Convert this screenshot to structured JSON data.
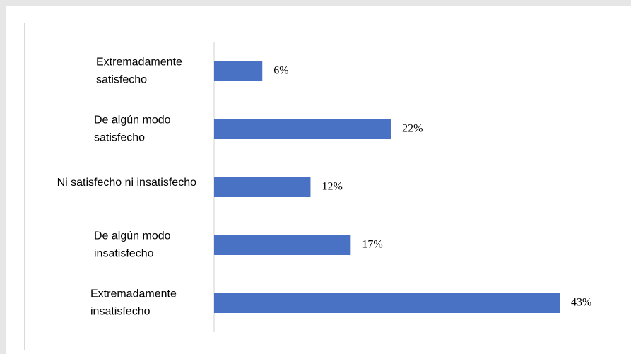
{
  "chart_data": {
    "type": "bar",
    "orientation": "horizontal",
    "categories": [
      [
        "Extremadamente",
        "satisfecho"
      ],
      [
        "De algún modo",
        "satisfecho"
      ],
      [
        "Ni satisfecho ni insatisfecho"
      ],
      [
        "De algún modo",
        "insatisfecho"
      ],
      [
        "Extremadamente",
        "insatisfecho"
      ]
    ],
    "values": [
      6,
      22,
      12,
      17,
      43
    ],
    "value_labels": [
      "6%",
      "22%",
      "12%",
      "17%",
      "43%"
    ],
    "title": "",
    "xlabel": "",
    "ylabel": "",
    "xlim": [
      0,
      43
    ],
    "grid": false,
    "legend": "none",
    "bar_color": "#4a72c4"
  }
}
